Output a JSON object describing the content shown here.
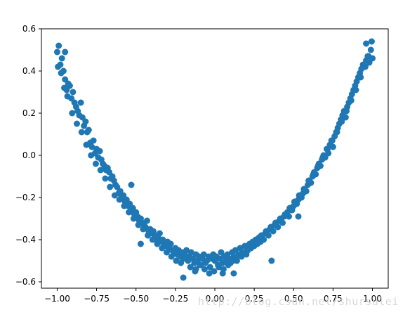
{
  "chart_data": {
    "type": "scatter",
    "title": "",
    "xlabel": "",
    "ylabel": "",
    "xlim": [
      -1.1,
      1.1
    ],
    "ylim": [
      -0.63,
      0.6
    ],
    "x_ticks": [
      -1.0,
      -0.75,
      -0.5,
      -0.25,
      0.0,
      0.25,
      0.5,
      0.75,
      1.0
    ],
    "x_tick_labels": [
      "−1.00",
      "−0.75",
      "−0.50",
      "−0.25",
      "0.00",
      "0.25",
      "0.50",
      "0.75",
      "1.00"
    ],
    "y_ticks": [
      -0.6,
      -0.4,
      -0.2,
      0.0,
      0.2,
      0.4,
      0.6
    ],
    "y_tick_labels": [
      "−0.6",
      "−0.4",
      "−0.2",
      "0.0",
      "0.2",
      "0.4",
      "0.6"
    ],
    "grid": false,
    "legend": "none",
    "marker_color": "#1f77b4",
    "series": [
      {
        "x": [
          -1.0,
          -0.99,
          -0.98,
          -0.97,
          -0.96,
          -0.95,
          -0.94,
          -0.93,
          -0.92,
          -0.91,
          -0.9,
          -0.89,
          -0.88,
          -0.87,
          -0.86,
          -0.85,
          -0.84,
          -0.83,
          -0.82,
          -0.81,
          -0.8,
          -0.79,
          -0.78,
          -0.77,
          -0.76,
          -0.75,
          -0.74,
          -0.73,
          -0.72,
          -0.71,
          -0.7,
          -0.69,
          -0.68,
          -0.67,
          -0.66,
          -0.65,
          -0.64,
          -0.63,
          -0.62,
          -0.61,
          -0.6,
          -0.59,
          -0.58,
          -0.57,
          -0.56,
          -0.55,
          -0.54,
          -0.53,
          -0.52,
          -0.51,
          -0.5,
          -0.49,
          -0.48,
          -0.47,
          -0.46,
          -0.45,
          -0.44,
          -0.43,
          -0.42,
          -0.41,
          -0.4,
          -0.39,
          -0.38,
          -0.37,
          -0.36,
          -0.35,
          -0.34,
          -0.33,
          -0.32,
          -0.31,
          -0.3,
          -0.29,
          -0.28,
          -0.27,
          -0.26,
          -0.25,
          -0.24,
          -0.23,
          -0.22,
          -0.21,
          -0.2,
          -0.19,
          -0.18,
          -0.17,
          -0.16,
          -0.15,
          -0.14,
          -0.13,
          -0.12,
          -0.11,
          -0.1,
          -0.09,
          -0.08,
          -0.07,
          -0.06,
          -0.05,
          -0.04,
          -0.03,
          -0.02,
          -0.01,
          0.0,
          0.01,
          0.02,
          0.03,
          0.04,
          0.05,
          0.06,
          0.07,
          0.08,
          0.09,
          0.1,
          0.11,
          0.12,
          0.13,
          0.14,
          0.15,
          0.16,
          0.17,
          0.18,
          0.19,
          0.2,
          0.21,
          0.22,
          0.23,
          0.24,
          0.25,
          0.26,
          0.27,
          0.28,
          0.29,
          0.3,
          0.31,
          0.32,
          0.33,
          0.34,
          0.35,
          0.36,
          0.37,
          0.38,
          0.39,
          0.4,
          0.41,
          0.42,
          0.43,
          0.44,
          0.45,
          0.46,
          0.47,
          0.48,
          0.49,
          0.5,
          0.51,
          0.52,
          0.53,
          0.54,
          0.55,
          0.56,
          0.57,
          0.58,
          0.59,
          0.6,
          0.61,
          0.62,
          0.63,
          0.64,
          0.65,
          0.66,
          0.67,
          0.68,
          0.69,
          0.7,
          0.71,
          0.72,
          0.73,
          0.74,
          0.75,
          0.76,
          0.77,
          0.78,
          0.79,
          0.8,
          0.81,
          0.82,
          0.83,
          0.84,
          0.85,
          0.86,
          0.87,
          0.88,
          0.89,
          0.9,
          0.91,
          0.92,
          0.93,
          0.94,
          0.95,
          0.96,
          0.97,
          0.98,
          0.99,
          1.0,
          -0.995,
          -0.975,
          -0.955,
          -0.935,
          -0.905,
          -0.875,
          -0.845,
          -0.815,
          -0.785,
          -0.755,
          -0.725,
          -0.695,
          -0.665,
          -0.635,
          -0.605,
          -0.575,
          -0.545,
          -0.515,
          -0.485,
          -0.455,
          -0.425,
          -0.395,
          -0.365,
          -0.335,
          -0.305,
          -0.275,
          -0.245,
          -0.215,
          -0.185,
          -0.155,
          -0.125,
          -0.095,
          -0.065,
          -0.035,
          -0.005,
          0.025,
          0.055,
          0.085,
          0.115,
          0.145,
          0.175,
          0.205,
          0.235,
          0.265,
          0.295,
          0.325,
          0.355,
          0.385,
          0.415,
          0.445,
          0.475,
          0.505,
          0.535,
          0.565,
          0.595,
          0.625,
          0.655,
          0.685,
          0.715,
          0.745,
          0.775,
          0.805,
          0.835,
          0.865,
          0.895,
          0.925,
          0.955,
          0.975,
          0.995,
          -0.53,
          -0.47,
          -0.2,
          -0.12,
          0.05,
          0.12,
          0.36,
          0.53,
          -0.95,
          0.96
        ],
        "y": [
          0.49,
          0.52,
          0.43,
          0.46,
          0.4,
          0.36,
          0.31,
          0.34,
          0.33,
          0.27,
          0.3,
          0.25,
          0.23,
          0.21,
          0.19,
          0.25,
          0.18,
          0.14,
          0.16,
          0.11,
          0.12,
          0.06,
          0.04,
          0.07,
          0.01,
          0.03,
          -0.01,
          0.02,
          -0.02,
          -0.04,
          -0.05,
          -0.07,
          -0.06,
          -0.08,
          -0.11,
          -0.1,
          -0.12,
          -0.14,
          -0.15,
          -0.18,
          -0.17,
          -0.2,
          -0.19,
          -0.22,
          -0.21,
          -0.24,
          -0.23,
          -0.26,
          -0.25,
          -0.28,
          -0.27,
          -0.29,
          -0.31,
          -0.3,
          -0.32,
          -0.33,
          -0.34,
          -0.31,
          -0.36,
          -0.35,
          -0.37,
          -0.36,
          -0.38,
          -0.4,
          -0.39,
          -0.37,
          -0.41,
          -0.4,
          -0.42,
          -0.43,
          -0.41,
          -0.44,
          -0.42,
          -0.45,
          -0.46,
          -0.44,
          -0.47,
          -0.45,
          -0.48,
          -0.46,
          -0.49,
          -0.47,
          -0.45,
          -0.5,
          -0.48,
          -0.46,
          -0.49,
          -0.51,
          -0.47,
          -0.5,
          -0.48,
          -0.52,
          -0.49,
          -0.47,
          -0.51,
          -0.5,
          -0.48,
          -0.53,
          -0.49,
          -0.47,
          -0.5,
          -0.48,
          -0.52,
          -0.49,
          -0.46,
          -0.51,
          -0.48,
          -0.5,
          -0.47,
          -0.49,
          -0.51,
          -0.46,
          -0.48,
          -0.45,
          -0.5,
          -0.47,
          -0.44,
          -0.48,
          -0.46,
          -0.43,
          -0.47,
          -0.45,
          -0.42,
          -0.44,
          -0.41,
          -0.43,
          -0.4,
          -0.42,
          -0.39,
          -0.41,
          -0.38,
          -0.4,
          -0.37,
          -0.36,
          -0.38,
          -0.35,
          -0.34,
          -0.36,
          -0.33,
          -0.32,
          -0.34,
          -0.31,
          -0.3,
          -0.32,
          -0.29,
          -0.28,
          -0.27,
          -0.29,
          -0.25,
          -0.26,
          -0.24,
          -0.22,
          -0.23,
          -0.21,
          -0.19,
          -0.2,
          -0.18,
          -0.16,
          -0.17,
          -0.14,
          -0.12,
          -0.13,
          -0.1,
          -0.08,
          -0.09,
          -0.06,
          -0.04,
          -0.05,
          -0.02,
          0.0,
          -0.01,
          0.03,
          0.01,
          0.05,
          0.07,
          0.04,
          0.09,
          0.11,
          0.13,
          0.15,
          0.17,
          0.19,
          0.21,
          0.18,
          0.23,
          0.25,
          0.27,
          0.29,
          0.31,
          0.33,
          0.35,
          0.37,
          0.39,
          0.41,
          0.43,
          0.42,
          0.45,
          0.47,
          0.44,
          0.5,
          0.46,
          0.42,
          0.39,
          0.32,
          0.28,
          0.2,
          0.15,
          0.11,
          0.05,
          0.0,
          -0.04,
          -0.07,
          -0.11,
          -0.15,
          -0.19,
          -0.21,
          -0.24,
          -0.27,
          -0.3,
          -0.33,
          -0.35,
          -0.38,
          -0.4,
          -0.42,
          -0.44,
          -0.46,
          -0.48,
          -0.5,
          -0.51,
          -0.49,
          -0.53,
          -0.55,
          -0.52,
          -0.54,
          -0.56,
          -0.55,
          -0.53,
          -0.54,
          -0.52,
          -0.5,
          -0.48,
          -0.46,
          -0.44,
          -0.42,
          -0.4,
          -0.38,
          -0.36,
          -0.34,
          -0.32,
          -0.3,
          -0.28,
          -0.25,
          -0.22,
          -0.19,
          -0.16,
          -0.12,
          -0.09,
          -0.05,
          -0.01,
          0.03,
          0.07,
          0.11,
          0.16,
          0.21,
          0.26,
          0.31,
          0.37,
          0.42,
          0.47,
          0.54,
          -0.14,
          -0.42,
          -0.58,
          -0.54,
          -0.56,
          -0.56,
          -0.5,
          -0.29,
          0.49,
          0.53
        ]
      }
    ]
  },
  "watermark": "http://blog.csdn.net/shursulei"
}
